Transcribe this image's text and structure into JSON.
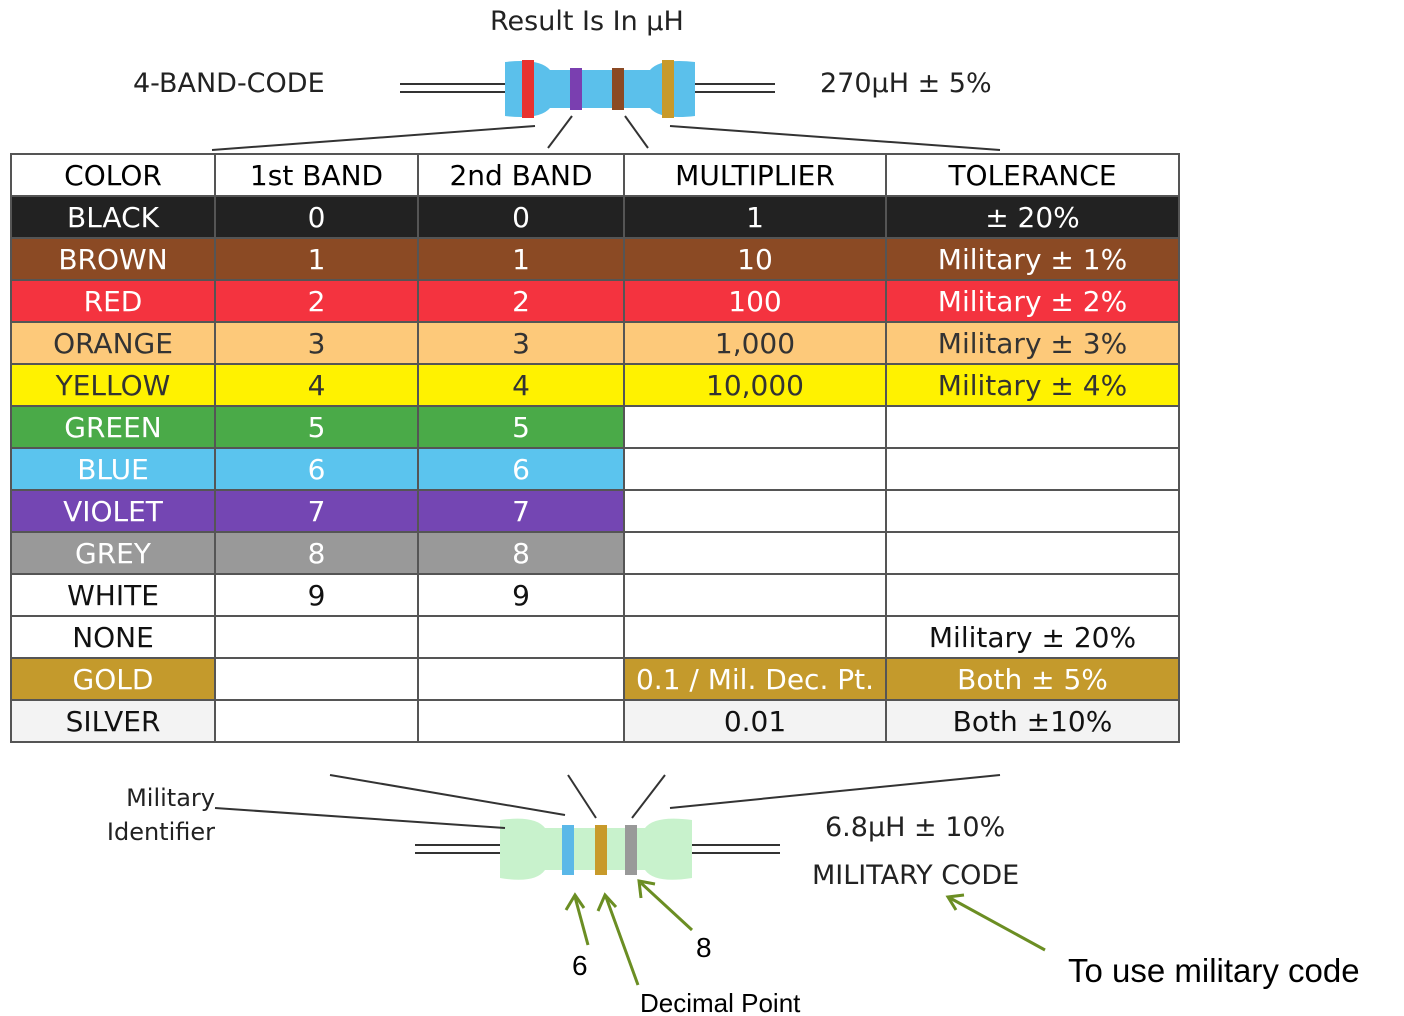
{
  "header": {
    "title": "Result Is In µH"
  },
  "top_resistor": {
    "label": "4-BAND-CODE",
    "result": "270µH ± 5%"
  },
  "table": {
    "columns": [
      "COLOR",
      "1st BAND",
      "2nd BAND",
      "MULTIPLIER",
      "TOLERANCE"
    ],
    "rows": [
      [
        "BLACK",
        "0",
        "0",
        "1",
        "± 20%"
      ],
      [
        "BROWN",
        "1",
        "1",
        "10",
        "Military ± 1%"
      ],
      [
        "RED",
        "2",
        "2",
        "100",
        "Military ± 2%"
      ],
      [
        "ORANGE",
        "3",
        "3",
        "1,000",
        "Military ± 3%"
      ],
      [
        "YELLOW",
        "4",
        "4",
        "10,000",
        "Military ± 4%"
      ],
      [
        "GREEN",
        "5",
        "5",
        null,
        null
      ],
      [
        "BLUE",
        "6",
        "6",
        null,
        null
      ],
      [
        "VIOLET",
        "7",
        "7",
        null,
        null
      ],
      [
        "GREY",
        "8",
        "8",
        null,
        null
      ],
      [
        "WHITE",
        "9",
        "9",
        null,
        null
      ],
      [
        "NONE",
        null,
        null,
        null,
        "Military ± 20%"
      ],
      [
        "GOLD",
        null,
        null,
        "0.1 / Mil. Dec. Pt.",
        "Both ± 5%"
      ],
      [
        "SILVER",
        null,
        null,
        "0.01",
        "Both ±10%"
      ]
    ]
  },
  "bottom_resistor": {
    "military_identifier": [
      "Military",
      "Identifier"
    ],
    "result": "6.8µH ± 10%",
    "code": "MILITARY CODE"
  },
  "annotations": {
    "first_digit": "6",
    "second_digit": "8",
    "decimal_point": "Decimal Point",
    "note": "To use military code"
  }
}
